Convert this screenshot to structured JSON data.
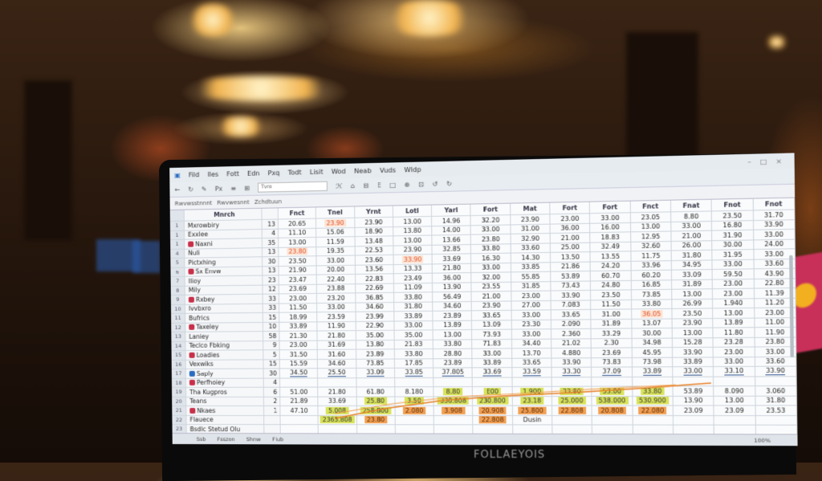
{
  "scene": {
    "brand_logo": "FOLLAEYOIS",
    "colors": {
      "highlight_green": "#d9e35a",
      "highlight_orange": "#f2a054",
      "accent_red": "#e0502a",
      "total_line": "#3a5d95"
    }
  },
  "app": {
    "menu": [
      "Fild",
      "Iles",
      "Fott",
      "Edn",
      "Pxq",
      "Todt",
      "Lisit",
      "Wod",
      "Neab",
      "Vuds",
      "Wldp"
    ],
    "toolbar": [
      "←",
      "↻",
      "✎",
      "Px",
      "≡",
      "⊞",
      "Tvro",
      "ℋ",
      "⌂",
      "⊟",
      "E",
      "□",
      "⊕",
      "⊡",
      "↺",
      "↻"
    ],
    "name_boxes": [
      "Rwvwsstnnnt",
      "Rwvwesnnt",
      "Zchdtuun"
    ],
    "window_controls": [
      "–",
      "□",
      "×"
    ]
  },
  "sheet": {
    "headers": [
      "Mnrch",
      "",
      "Fnct",
      "Tnel",
      "Yrnt",
      "Lotl",
      "Yarl",
      "Fort",
      "Mat",
      "Fort",
      "Fort",
      "Fnct",
      "Fnat",
      "Fnot",
      "Fnot"
    ],
    "rows": [
      {
        "n": "1",
        "name": "Mxrowbiry",
        "q": "13",
        "v": [
          "20.65",
          "23.90",
          "23.90",
          "13.00",
          "14.96",
          "32.20",
          "23.90",
          "23.00",
          "33.00",
          "23.05",
          "8.80",
          "23.50",
          "31.70"
        ],
        "m": [
          "",
          "r",
          "",
          "",
          "",
          "",
          "",
          "",
          "",
          "",
          "",
          "",
          ""
        ]
      },
      {
        "n": "1",
        "name": "Exxlee",
        "q": "4",
        "v": [
          "11.10",
          "15.06",
          "18.90",
          "13.80",
          "14.00",
          "33.00",
          "31.00",
          "36.00",
          "16.00",
          "13.00",
          "33.00",
          "16.80",
          "33.90"
        ]
      },
      {
        "n": "1",
        "name": "Naxni",
        "q": "35",
        "v": [
          "13.00",
          "11.59",
          "13.48",
          "13.00",
          "13.66",
          "23.80",
          "32.90",
          "21.00",
          "18.83",
          "12.95",
          "21.00",
          "31.90",
          "33.00"
        ]
      },
      {
        "n": "4",
        "name": "Nuli",
        "q": "13",
        "v": [
          "23.80",
          "19.35",
          "22.53",
          "23.90",
          "32.85",
          "33.80",
          "33.60",
          "25.00",
          "32.49",
          "32.60",
          "26.00",
          "30.00",
          "24.00"
        ],
        "m": [
          "r",
          "",
          "",
          "",
          "",
          "",
          "",
          "",
          "",
          "",
          "",
          "",
          ""
        ]
      },
      {
        "n": "5",
        "name": "Pictxhing",
        "q": "30",
        "v": [
          "23.50",
          "33.00",
          "23.60",
          "33.90",
          "33.69",
          "16.30",
          "14.30",
          "13.50",
          "13.55",
          "11.75",
          "31.80",
          "31.95",
          "33.00"
        ],
        "m": [
          "",
          "",
          "",
          "r",
          "",
          "",
          "",
          "",
          "",
          "",
          "",
          "",
          ""
        ]
      },
      {
        "n": "6",
        "name": "Sx Envw",
        "q": "13",
        "v": [
          "21.90",
          "20.00",
          "13.56",
          "13.33",
          "21.80",
          "33.00",
          "33.85",
          "21.86",
          "24.20",
          "33.96",
          "34.95",
          "33.00",
          "33.60"
        ]
      },
      {
        "n": "7",
        "name": "Ilioy",
        "q": "23",
        "v": [
          "23.47",
          "22.40",
          "22.83",
          "23.49",
          "36.00",
          "32.00",
          "55.85",
          "53.89",
          "60.70",
          "60.20",
          "33.09",
          "59.50",
          "43.90"
        ]
      },
      {
        "n": "8",
        "name": "Mily",
        "q": "12",
        "v": [
          "23.69",
          "23.88",
          "22.69",
          "11.09",
          "13.90",
          "23.55",
          "31.85",
          "73.43",
          "24.80",
          "16.85",
          "31.89",
          "23.00",
          "22.80"
        ]
      },
      {
        "n": "9",
        "name": "Rxbey",
        "q": "33",
        "v": [
          "23.00",
          "23.20",
          "36.85",
          "33.80",
          "56.49",
          "21.00",
          "23.00",
          "33.90",
          "23.50",
          "73.85",
          "13.00",
          "23.00",
          "11.39"
        ]
      },
      {
        "n": "10",
        "name": "Ivvbxro",
        "q": "33",
        "v": [
          "11.50",
          "33.00",
          "34.60",
          "31.80",
          "34.60",
          "23.90",
          "27.00",
          "7.083",
          "11.50",
          "33.80",
          "26.99",
          "1.940",
          "11.20"
        ]
      },
      {
        "n": "11",
        "name": "Bufrics",
        "q": "15",
        "v": [
          "18.99",
          "23.59",
          "23.99",
          "33.89",
          "23.89",
          "33.65",
          "33.00",
          "33.65",
          "31.00",
          "36.05",
          "23.50",
          "13.00",
          "23.00"
        ],
        "m": [
          "",
          "",
          "",
          "",
          "",
          "",
          "",
          "",
          "",
          "r",
          "",
          "",
          ""
        ]
      },
      {
        "n": "12",
        "name": "Taxeley",
        "q": "10",
        "v": [
          "33.89",
          "11.90",
          "22.90",
          "33.00",
          "13.89",
          "13.09",
          "23.30",
          "2.090",
          "31.89",
          "13.07",
          "23.90",
          "13.89",
          "11.00"
        ]
      },
      {
        "n": "13",
        "name": "Laniey",
        "q": "58",
        "v": [
          "21.30",
          "21.80",
          "35.00",
          "35.00",
          "13.00",
          "73.93",
          "33.00",
          "2.360",
          "33.29",
          "30.00",
          "13.00",
          "11.80",
          "11.90"
        ]
      },
      {
        "n": "14",
        "name": "Teclco Fbking",
        "q": "9",
        "v": [
          "23.00",
          "31.69",
          "13.80",
          "21.83",
          "33.80",
          "71.83",
          "34.40",
          "21.02",
          "2.30",
          "34.98",
          "15.28",
          "23.28",
          "23.80"
        ]
      },
      {
        "n": "15",
        "name": "Loadies",
        "q": "5",
        "v": [
          "31.50",
          "31.60",
          "23.89",
          "33.80",
          "28.80",
          "33.00",
          "13.70",
          "4.880",
          "23.69",
          "45.95",
          "33.90",
          "23.00",
          "33.00"
        ]
      },
      {
        "n": "16",
        "name": "Vexwiks",
        "q": "15",
        "v": [
          "15.59",
          "34.60",
          "73.85",
          "17.85",
          "23.89",
          "33.89",
          "33.65",
          "33.90",
          "73.83",
          "73.98",
          "33.89",
          "33.00",
          "33.60"
        ]
      },
      {
        "n": "17",
        "name": "Saply",
        "q": "30",
        "v": [
          "34.50",
          "25.50",
          "33.09",
          "33.85",
          "37.805",
          "33.69",
          "33.59",
          "33.30",
          "37.09",
          "33.89",
          "33.00",
          "33.10",
          "33.90"
        ],
        "m": [
          "u",
          "u",
          "u",
          "u",
          "u",
          "u",
          "u",
          "u",
          "u",
          "u",
          "u",
          "u",
          "u"
        ]
      },
      {
        "n": "18",
        "name": "Perfhoiey",
        "q": "4",
        "v": [
          "",
          "",
          "",
          "",
          "",
          "",
          "",
          "",
          "",
          "",
          "",
          "",
          ""
        ]
      },
      {
        "n": "19",
        "name": "Tha Kugpros",
        "q": "6",
        "v": [
          "51.00",
          "21.80",
          "61.80",
          "8.180",
          "8.80",
          "E00",
          "1.900",
          "33.80",
          "53.00",
          "33.80",
          "53.89",
          "8.090",
          "3.060"
        ],
        "m": [
          "",
          "",
          "",
          "",
          "g",
          "g",
          "g",
          "g",
          "g",
          "g",
          "",
          "",
          ""
        ]
      },
      {
        "n": "20",
        "name": "Teans",
        "q": "2",
        "v": [
          "21.89",
          "33.69",
          "25.80",
          "3.50",
          "330.808",
          "230.800",
          "23.18",
          "25.000",
          "538.000",
          "530.900",
          "13.90",
          "13.00",
          "31.80"
        ],
        "m": [
          "",
          "",
          "g",
          "g",
          "g",
          "g",
          "g",
          "g",
          "g",
          "g",
          "",
          "",
          ""
        ]
      },
      {
        "n": "21",
        "name": "Nkaes",
        "q": "1",
        "v": [
          "47.10",
          "5.008",
          "258.800",
          "2.080",
          "3.908",
          "20.908",
          "25.800",
          "22.808",
          "20.808",
          "22.080",
          "23.09",
          "23.09",
          "23.53"
        ],
        "m": [
          "",
          "g",
          "g",
          "o",
          "o",
          "o",
          "o",
          "o",
          "o",
          "o",
          "",
          "",
          ""
        ]
      },
      {
        "n": "22",
        "name": "Flauece",
        "q": "",
        "v": [
          "",
          "2363.808",
          "23.80",
          "",
          "",
          "22.808",
          "Dusin",
          "",
          "",
          "",
          "",
          "",
          ""
        ],
        "m": [
          "",
          "g",
          "o",
          "",
          "",
          "o",
          "",
          "",
          "",
          "",
          "",
          "",
          ""
        ]
      },
      {
        "n": "23",
        "name": "Bsdlc Stetud Olu",
        "q": "",
        "v": [
          "",
          "",
          "",
          "",
          "",
          "",
          "",
          "",
          "",
          "",
          "",
          "",
          ""
        ]
      }
    ],
    "sheet_tabs": [
      "Ssb",
      "Fsszon",
      "Shnw",
      "Flub"
    ],
    "zoom": "100%"
  }
}
